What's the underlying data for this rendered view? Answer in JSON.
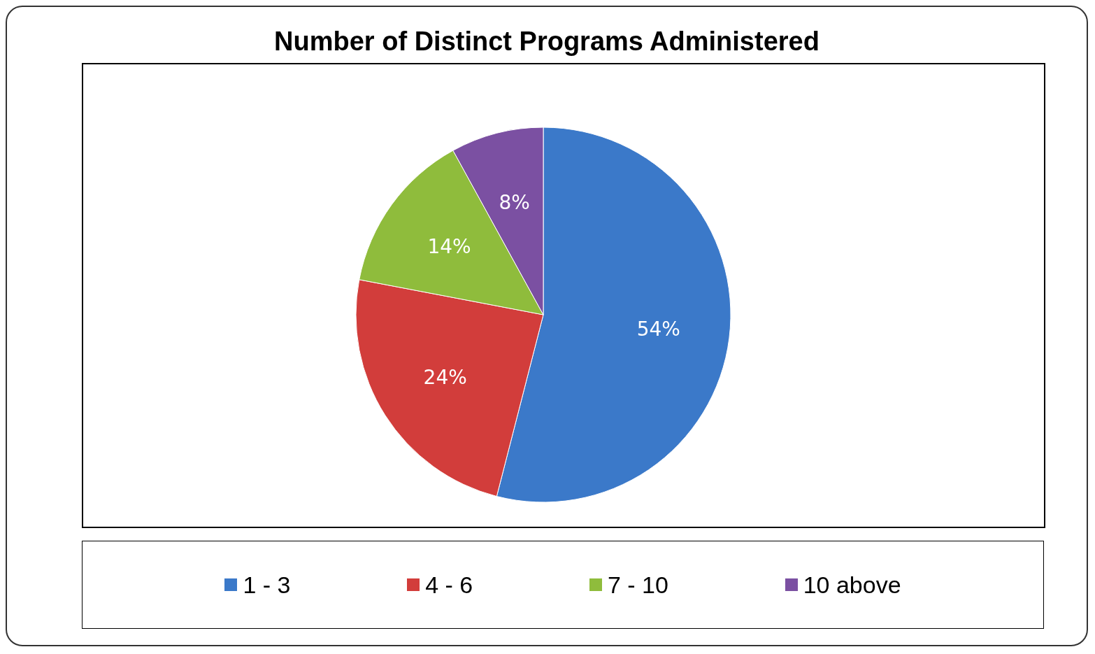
{
  "chart_data": {
    "type": "pie",
    "title": "Number of Distinct Programs Administered",
    "categories": [
      "1 - 3",
      "4 - 6",
      "7 - 10",
      "10 above"
    ],
    "values": [
      54,
      24,
      14,
      8
    ],
    "colors": [
      "#3b79c9",
      "#d23d3b",
      "#8fbc3c",
      "#7b50a2"
    ],
    "value_labels": [
      "54%",
      "24%",
      "14%",
      "8%"
    ],
    "legend": "bottom"
  }
}
